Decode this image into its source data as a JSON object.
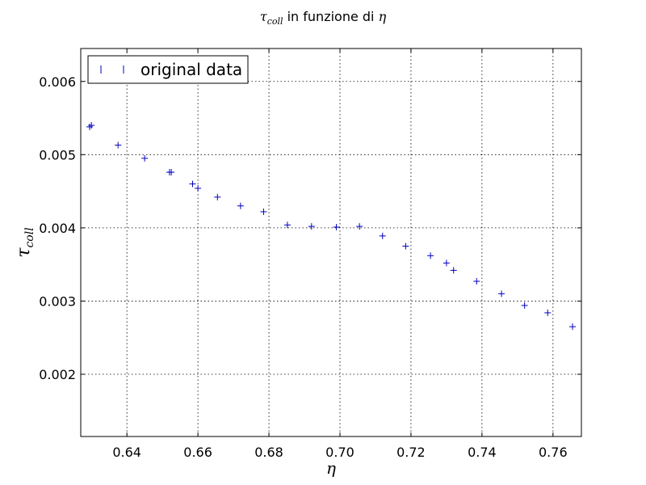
{
  "chart_data": {
    "type": "scatter",
    "title": {
      "math": "τ",
      "math_sub": "coll",
      "text": " in funzione di ",
      "math2": "η"
    },
    "xlabel": "η",
    "ylabel": {
      "symbol": "τ",
      "sub": "coll"
    },
    "xlim": [
      0.627,
      0.768
    ],
    "ylim": [
      0.00115,
      0.00645
    ],
    "xticks": [
      0.64,
      0.66,
      0.68,
      0.7,
      0.72,
      0.74,
      0.76
    ],
    "xtick_labels": [
      "0.64",
      "0.66",
      "0.68",
      "0.70",
      "0.72",
      "0.74",
      "0.76"
    ],
    "yticks": [
      0.002,
      0.003,
      0.004,
      0.005,
      0.006
    ],
    "ytick_labels": [
      "0.002",
      "0.003",
      "0.004",
      "0.005",
      "0.006"
    ],
    "grid": true,
    "legend_position": "top-left",
    "marker": "+",
    "series": [
      {
        "name": "original data",
        "color": "#0000bf",
        "x": [
          0.6295,
          0.63,
          0.6375,
          0.645,
          0.652,
          0.6525,
          0.6585,
          0.66,
          0.6655,
          0.672,
          0.6785,
          0.6852,
          0.692,
          0.699,
          0.7055,
          0.712,
          0.7185,
          0.7255,
          0.73,
          0.732,
          0.7385,
          0.7455,
          0.752,
          0.7585,
          0.7655
        ],
        "y": [
          0.00538,
          0.0054,
          0.00513,
          0.00495,
          0.00476,
          0.00476,
          0.0046,
          0.00454,
          0.00442,
          0.0043,
          0.00422,
          0.00404,
          0.00402,
          0.00401,
          0.00402,
          0.00389,
          0.00375,
          0.00362,
          0.00352,
          0.00342,
          0.00327,
          0.0031,
          0.00294,
          0.00284,
          0.00265
        ]
      }
    ]
  }
}
